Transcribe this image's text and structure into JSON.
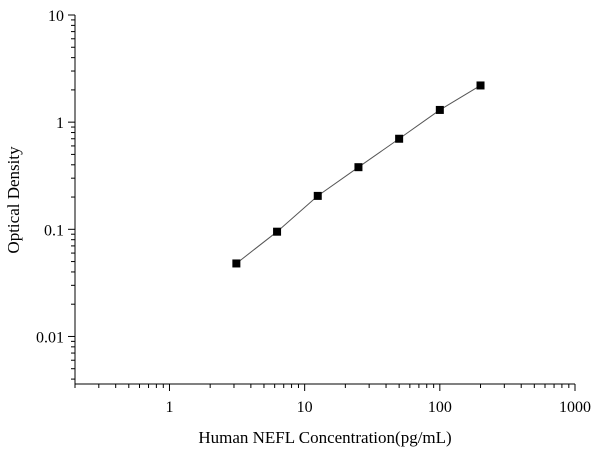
{
  "chart_data": {
    "type": "scatter",
    "title": "",
    "xlabel": "Human NEFL Concentration(pg/mL)",
    "ylabel": "Optical Density",
    "x_scale": "log",
    "y_scale": "log",
    "xlim": [
      0.2,
      1000
    ],
    "ylim": [
      0.0036,
      10
    ],
    "x_ticks": [
      1,
      10,
      100,
      1000
    ],
    "x_tick_labels": [
      "1",
      "10",
      "100",
      "1000"
    ],
    "y_ticks": [
      0.01,
      0.1,
      1,
      10
    ],
    "y_tick_labels": [
      "0.01",
      "0.1",
      "1",
      "10"
    ],
    "grid": false,
    "legend": "none",
    "series": [
      {
        "x": [
          3.125,
          6.25,
          12.5,
          25,
          50,
          100,
          200
        ],
        "y": [
          0.048,
          0.095,
          0.205,
          0.38,
          0.7,
          1.3,
          2.2
        ],
        "marker": "square",
        "color": "#000000",
        "fit_line": true,
        "fit_color": "#555555"
      }
    ]
  }
}
